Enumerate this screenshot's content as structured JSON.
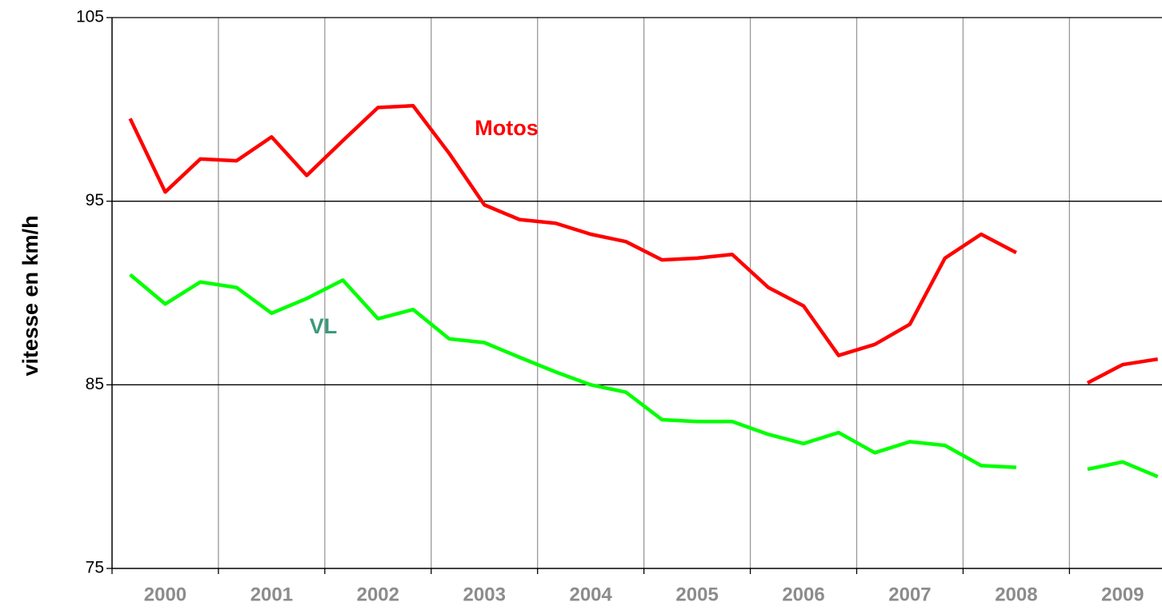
{
  "chart_data": {
    "type": "line",
    "y_label": "vitesse en km/h",
    "x": [
      2000.17,
      2000.5,
      2000.83,
      2001.17,
      2001.5,
      2001.83,
      2002.17,
      2002.5,
      2002.83,
      2003.17,
      2003.5,
      2003.83,
      2004.17,
      2004.5,
      2004.83,
      2005.17,
      2005.5,
      2005.83,
      2006.17,
      2006.5,
      2006.83,
      2007.17,
      2007.5,
      2007.83,
      2008.17,
      2008.5,
      2008.83,
      2009.17,
      2009.5,
      2009.83
    ],
    "series": [
      {
        "name": "Motos",
        "color": "#ff0000",
        "values": [
          99.5,
          95.5,
          97.3,
          97.2,
          98.5,
          96.4,
          98.3,
          100.1,
          100.2,
          97.6,
          94.8,
          94.0,
          93.8,
          93.2,
          92.8,
          91.8,
          91.9,
          92.1,
          90.3,
          89.3,
          86.6,
          87.2,
          88.3,
          91.9,
          93.2,
          92.2,
          null,
          85.1,
          86.1,
          86.4
        ]
      },
      {
        "name": "VL",
        "color": "#00ff00",
        "label_color": "#3a9a7a",
        "values": [
          91.0,
          89.4,
          90.6,
          90.3,
          88.9,
          89.7,
          90.7,
          88.6,
          89.1,
          87.5,
          87.3,
          86.5,
          85.7,
          85.0,
          84.6,
          83.1,
          83.0,
          83.0,
          82.3,
          81.8,
          82.4,
          81.3,
          81.9,
          81.7,
          80.6,
          80.5,
          null,
          80.4,
          80.8,
          80.0
        ]
      }
    ],
    "xlim": [
      2000,
      2009.87
    ],
    "xticks": [
      2000,
      2001,
      2002,
      2003,
      2004,
      2005,
      2006,
      2007,
      2008,
      2009
    ],
    "ylim": [
      75,
      105
    ],
    "yticks": [
      75,
      85,
      95,
      105
    ],
    "grid": true
  }
}
